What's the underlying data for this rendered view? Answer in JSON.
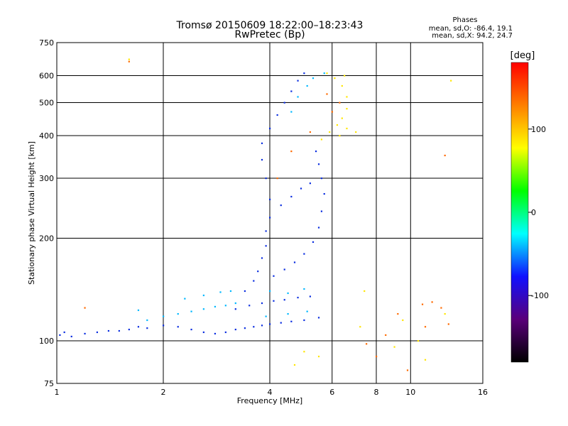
{
  "chart_data": {
    "type": "scatter",
    "title": "Tromsø 20150609 18:22:00–18:23:43",
    "subtitle": "RwPretec (Bp)",
    "xlabel": "Frequency [MHz]",
    "ylabel": "Stationary phase Virtual Height [km]",
    "xscale": "log",
    "yscale": "log",
    "xlim": [
      1,
      16
    ],
    "ylim": [
      75,
      750
    ],
    "xticks": [
      1,
      2,
      4,
      6,
      8,
      10,
      16
    ],
    "yticks": [
      75,
      100,
      200,
      300,
      400,
      500,
      600,
      750
    ],
    "grid": true,
    "stats": {
      "title": "Phases",
      "o_mode": "mean, sd,O: -86.4, 19.1",
      "x_mode": "mean, sd,X:  94.2, 24.7"
    },
    "colorbar": {
      "label": "[deg]",
      "range": [
        -180,
        180
      ],
      "ticks": [
        -100,
        0,
        100
      ],
      "colormap": [
        "#000000",
        "#5a007a",
        "#1010ff",
        "#00ffff",
        "#00ff00",
        "#ffff00",
        "#ff7f00",
        "#ff0000"
      ]
    },
    "series": [
      {
        "color": "#0b2ee0",
        "points": [
          [
            1.02,
            104
          ],
          [
            1.05,
            106
          ],
          [
            1.1,
            103
          ],
          [
            1.2,
            105
          ],
          [
            1.3,
            106
          ],
          [
            1.4,
            107
          ],
          [
            1.5,
            107
          ],
          [
            1.6,
            108
          ],
          [
            1.7,
            110
          ],
          [
            1.8,
            109
          ],
          [
            2.0,
            111
          ],
          [
            2.2,
            110
          ],
          [
            2.4,
            108
          ],
          [
            2.6,
            106
          ],
          [
            2.8,
            105
          ],
          [
            3.0,
            106
          ],
          [
            3.2,
            108
          ],
          [
            3.4,
            109
          ],
          [
            3.6,
            110
          ],
          [
            3.8,
            111
          ],
          [
            4.0,
            112
          ],
          [
            4.3,
            113
          ],
          [
            4.6,
            114
          ],
          [
            5.0,
            115
          ],
          [
            5.5,
            117
          ],
          [
            3.2,
            124
          ],
          [
            3.5,
            127
          ],
          [
            3.8,
            129
          ],
          [
            4.1,
            131
          ],
          [
            4.4,
            132
          ],
          [
            4.8,
            134
          ],
          [
            5.2,
            135
          ],
          [
            3.4,
            140
          ],
          [
            3.6,
            150
          ],
          [
            3.7,
            160
          ],
          [
            3.8,
            175
          ],
          [
            3.9,
            190
          ],
          [
            3.9,
            210
          ],
          [
            4.0,
            230
          ],
          [
            4.0,
            260
          ],
          [
            3.9,
            300
          ],
          [
            3.8,
            340
          ],
          [
            3.8,
            380
          ],
          [
            4.0,
            420
          ],
          [
            4.2,
            460
          ],
          [
            4.4,
            500
          ],
          [
            4.6,
            540
          ],
          [
            4.8,
            580
          ],
          [
            5.0,
            610
          ],
          [
            4.1,
            155
          ],
          [
            4.4,
            162
          ],
          [
            4.7,
            170
          ],
          [
            5.0,
            180
          ],
          [
            5.3,
            195
          ],
          [
            5.5,
            215
          ],
          [
            5.6,
            240
          ],
          [
            5.7,
            270
          ],
          [
            5.6,
            300
          ],
          [
            5.5,
            330
          ],
          [
            5.4,
            360
          ],
          [
            4.3,
            250
          ],
          [
            4.6,
            265
          ],
          [
            4.9,
            280
          ],
          [
            5.2,
            290
          ]
        ]
      },
      {
        "color": "#00b8ff",
        "points": [
          [
            1.8,
            115
          ],
          [
            2.0,
            118
          ],
          [
            2.2,
            120
          ],
          [
            2.4,
            122
          ],
          [
            2.6,
            124
          ],
          [
            2.8,
            126
          ],
          [
            3.0,
            127
          ],
          [
            3.2,
            129
          ],
          [
            2.3,
            133
          ],
          [
            2.6,
            136
          ],
          [
            2.9,
            139
          ],
          [
            3.1,
            140
          ],
          [
            1.7,
            123
          ],
          [
            4.0,
            140
          ],
          [
            4.5,
            138
          ],
          [
            5.0,
            142
          ],
          [
            3.9,
            118
          ],
          [
            4.5,
            120
          ],
          [
            5.1,
            122
          ],
          [
            4.6,
            470
          ],
          [
            4.8,
            520
          ],
          [
            5.1,
            560
          ],
          [
            5.3,
            590
          ],
          [
            5.7,
            610
          ]
        ]
      },
      {
        "color": "#ffe600",
        "points": [
          [
            5.6,
            390
          ],
          [
            5.9,
            410
          ],
          [
            6.2,
            430
          ],
          [
            6.4,
            450
          ],
          [
            6.6,
            480
          ],
          [
            6.6,
            520
          ],
          [
            6.4,
            560
          ],
          [
            6.1,
            590
          ],
          [
            5.8,
            610
          ],
          [
            6.3,
            400
          ],
          [
            6.6,
            420
          ],
          [
            7.0,
            410
          ],
          [
            1.6,
            670
          ],
          [
            6.5,
            600
          ],
          [
            5.0,
            93
          ],
          [
            5.5,
            90
          ],
          [
            7.2,
            110
          ],
          [
            9.0,
            96
          ],
          [
            9.5,
            115
          ],
          [
            10.5,
            100
          ],
          [
            11,
            88
          ],
          [
            12.5,
            120
          ],
          [
            13,
            580
          ],
          [
            4.7,
            85
          ],
          [
            7.4,
            140
          ]
        ]
      },
      {
        "color": "#ff6a00",
        "points": [
          [
            6.0,
            470
          ],
          [
            6.3,
            500
          ],
          [
            5.8,
            530
          ],
          [
            7.5,
            98
          ],
          [
            8.5,
            104
          ],
          [
            9.2,
            120
          ],
          [
            10.8,
            128
          ],
          [
            11.5,
            130
          ],
          [
            12.2,
            125
          ],
          [
            12.8,
            112
          ],
          [
            11.0,
            110
          ],
          [
            8.0,
            90
          ],
          [
            9.8,
            82
          ],
          [
            12.5,
            350
          ],
          [
            4.2,
            300
          ],
          [
            4.6,
            360
          ],
          [
            5.2,
            410
          ],
          [
            1.2,
            125
          ],
          [
            1.6,
            660
          ]
        ]
      }
    ]
  }
}
